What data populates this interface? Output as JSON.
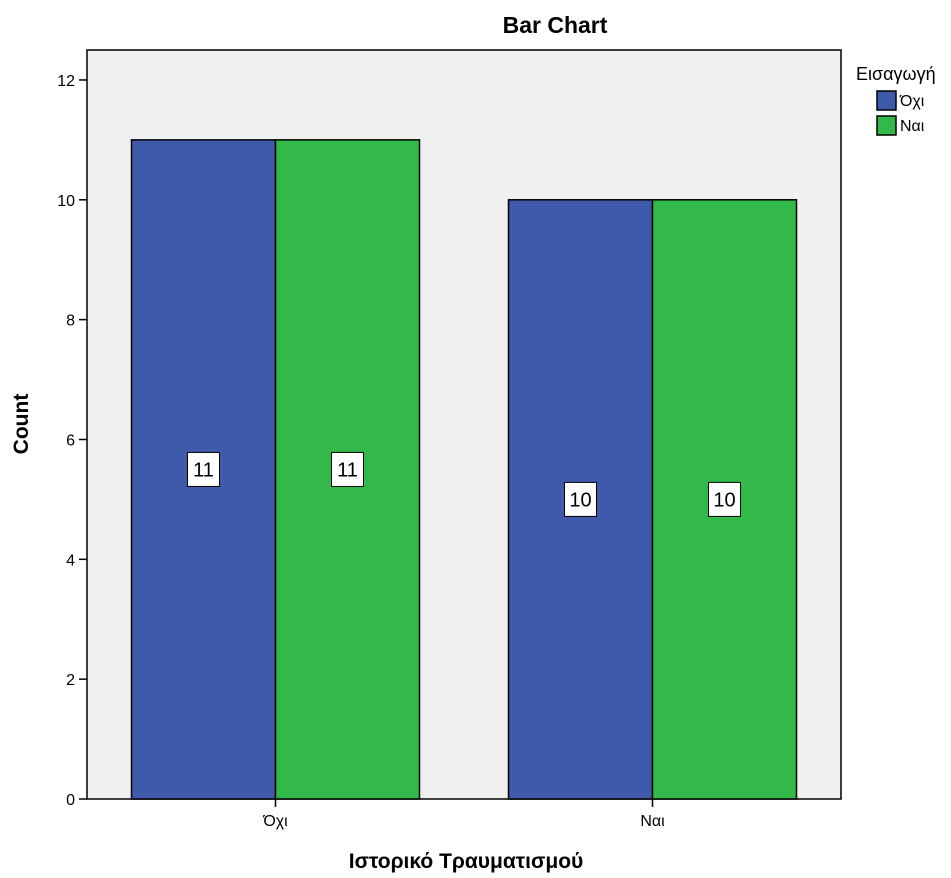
{
  "chart_data": {
    "type": "bar",
    "title": "Bar Chart",
    "xlabel": "Ιστορικό Τραυματισμού",
    "ylabel": "Count",
    "categories": [
      "Όχι",
      "Ναι"
    ],
    "series": [
      {
        "name": "Όχι",
        "color": "#3f59ab",
        "values": [
          11,
          10
        ]
      },
      {
        "name": "Ναι",
        "color": "#33b84a",
        "values": [
          11,
          10
        ]
      }
    ],
    "ylim": [
      0,
      12.5
    ],
    "yticks": [
      0,
      2,
      4,
      6,
      8,
      10,
      12
    ],
    "legend": {
      "title": "Εισαγωγή",
      "placement": "top-right"
    },
    "grid": false,
    "plot_background": "#f0f0f0",
    "data_labels": true
  }
}
